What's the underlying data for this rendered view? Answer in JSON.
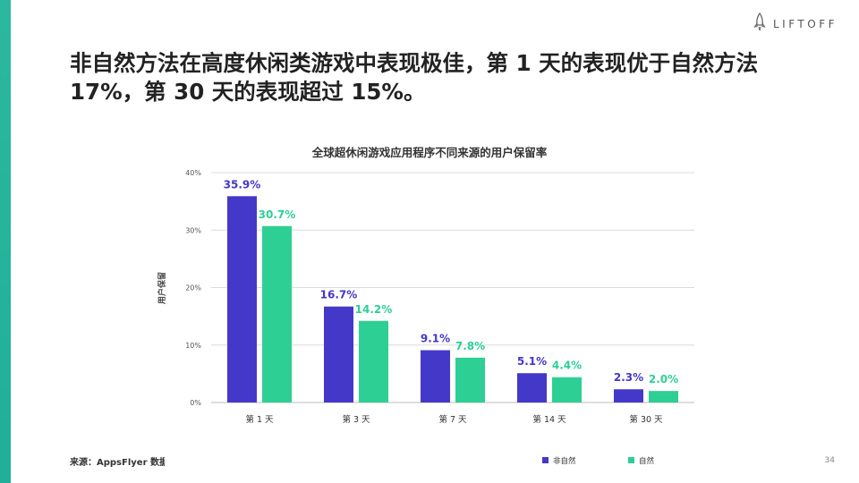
{
  "slide": {
    "headline": "非自然方法在高度休闲类游戏中表现极佳，第 1 天的表现优于自然方法 17%，第 30 天的表现超过 15%。",
    "brand": "LIFTOFF",
    "source": "来源：AppsFlyer 数据",
    "page_number": "34"
  },
  "colors": {
    "accent_bar": "#22b09a",
    "non_organic": "#4438c9",
    "organic": "#2ecf94"
  },
  "icons": {
    "logo": "rocket-icon"
  },
  "chart_data": {
    "type": "bar",
    "title": "全球超休闲游戏应用程序不同来源的用户保留率",
    "xlabel": "",
    "ylabel": "用户保留",
    "categories": [
      "第 1 天",
      "第 3 天",
      "第 7 天",
      "第 14 天",
      "第 30 天"
    ],
    "series": [
      {
        "name": "非自然",
        "values": [
          35.9,
          16.7,
          9.1,
          5.1,
          2.3
        ],
        "labels": [
          "35.9%",
          "16.7%",
          "9.1%",
          "5.1%",
          "2.3%"
        ]
      },
      {
        "name": "自然",
        "values": [
          30.7,
          14.2,
          7.8,
          4.4,
          2.0
        ],
        "labels": [
          "30.7%",
          "14.2%",
          "7.8%",
          "4.4%",
          "2.0%"
        ]
      }
    ],
    "yticks": [
      "0%",
      "10%",
      "20%",
      "30%",
      "40%"
    ],
    "ylim": [
      0,
      40
    ],
    "grid": true,
    "legend": "bottom"
  }
}
